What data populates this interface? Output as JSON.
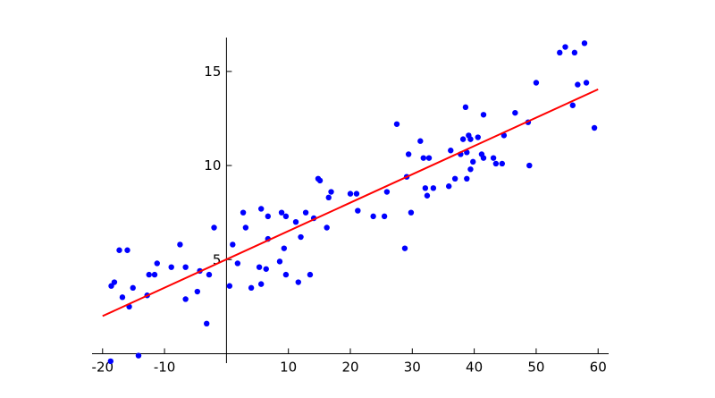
{
  "chart_data": {
    "type": "scatter",
    "xlim": [
      -21.7,
      61.7
    ],
    "ylim": [
      -0.5,
      16.8
    ],
    "xticks": [
      -20,
      -10,
      10,
      20,
      30,
      40,
      50,
      60
    ],
    "yticks": [
      5,
      10,
      15
    ],
    "series": [
      {
        "type": "scatter",
        "color": "#0000ff",
        "x": [
          -18.7,
          -14.2,
          -18.6,
          -18.1,
          -17.3,
          -16.0,
          -16.8,
          -15.7,
          -15.1,
          -12.8,
          -12.5,
          -11.6,
          -11.2,
          -8.9,
          -7.5,
          -6.6,
          -6.6,
          -4.7,
          -4.3,
          -3.2,
          -2.8,
          -2.0,
          0.5,
          1.0,
          1.8,
          2.7,
          3.1,
          4.0,
          5.3,
          5.6,
          5.6,
          6.4,
          6.7,
          6.7,
          8.6,
          8.9,
          9.3,
          9.6,
          9.6,
          11.2,
          11.6,
          12.0,
          12.8,
          13.5,
          14.1,
          14.8,
          15.1,
          16.2,
          16.5,
          16.9,
          20.0,
          21.0,
          21.2,
          23.7,
          25.5,
          25.9,
          27.5,
          28.8,
          29.1,
          29.4,
          29.8,
          31.3,
          31.8,
          32.1,
          32.4,
          32.7,
          33.4,
          35.9,
          36.2,
          36.9,
          37.8,
          38.2,
          38.6,
          38.8,
          38.8,
          39.1,
          39.4,
          39.4,
          39.8,
          40.6,
          41.2,
          41.5,
          41.5,
          43.1,
          43.5,
          44.5,
          44.8,
          46.6,
          48.7,
          48.9,
          50.0,
          53.8,
          54.7,
          55.9,
          56.2,
          56.7,
          57.8,
          58.1,
          59.4
        ],
        "values": [
          -0.4,
          -0.1,
          3.6,
          3.8,
          5.5,
          5.5,
          3.0,
          2.5,
          3.5,
          3.1,
          4.2,
          4.2,
          4.8,
          4.6,
          5.8,
          4.6,
          2.9,
          3.3,
          4.4,
          1.6,
          4.2,
          6.7,
          3.6,
          5.8,
          4.8,
          7.5,
          6.7,
          3.5,
          4.6,
          7.7,
          3.7,
          4.5,
          6.1,
          7.3,
          4.9,
          7.5,
          5.6,
          7.3,
          4.2,
          7.0,
          3.8,
          6.2,
          7.5,
          4.2,
          7.2,
          9.3,
          9.2,
          6.7,
          8.3,
          8.6,
          8.5,
          8.5,
          7.6,
          7.3,
          7.3,
          8.6,
          12.2,
          5.6,
          9.4,
          10.6,
          7.5,
          11.3,
          10.4,
          8.8,
          8.4,
          10.4,
          8.8,
          8.9,
          10.8,
          9.3,
          10.6,
          11.4,
          13.1,
          9.3,
          10.7,
          11.6,
          11.4,
          9.8,
          10.2,
          11.5,
          10.6,
          12.7,
          10.4,
          10.4,
          10.1,
          10.1,
          11.6,
          12.8,
          12.3,
          10.0,
          14.4,
          16.0,
          16.3,
          13.2,
          16.0,
          14.3,
          16.5,
          14.4,
          12.0
        ]
      },
      {
        "type": "line",
        "color": "#ff0000",
        "x": [
          -20,
          60
        ],
        "values": [
          2.0,
          14.05
        ]
      }
    ]
  }
}
